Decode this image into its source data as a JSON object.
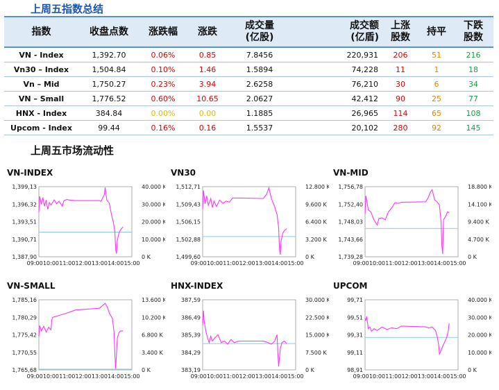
{
  "title1": "上周五指数总结",
  "title2": "上周五市场流动性",
  "table": {
    "headers": [
      "指数",
      "收盘点数",
      "涨跌幅",
      "涨跌",
      "成交量\n(亿股)",
      "成交额\n(亿盾)",
      "上涨\n股数",
      "持平",
      "下跌\n股数"
    ],
    "rows": [
      [
        "VN - Index",
        "1,392.70",
        "0.06%",
        "0.85",
        "7.8456",
        "220,931",
        "206",
        "51",
        "216"
      ],
      [
        "Vn30 – Index",
        "1,504.84",
        "0.10%",
        "1.46",
        "1.5894",
        "74,228",
        "11",
        "1",
        "18"
      ],
      [
        "Vn – Mid",
        "1,750.27",
        "0.23%",
        "3.94",
        "2.6258",
        "76,210",
        "30",
        "6",
        "34"
      ],
      [
        "VN – Small",
        "1,776.52",
        "0.60%",
        "10.65",
        "2.0627",
        "42,412",
        "90",
        "25",
        "77"
      ],
      [
        "HNX - Index",
        "384.84",
        "0.00%",
        "0.00",
        "1.1885",
        "26,965",
        "114",
        "65",
        "108"
      ],
      [
        "Upcom - Index",
        "99.44",
        "0.16%",
        "0.16",
        "1.5537",
        "20,102",
        "280",
        "92",
        "145"
      ]
    ],
    "colors": {
      "up": "#e00000",
      "flat": "#e6b800",
      "down": "#18a04a",
      "flat_count": "#e08400"
    }
  },
  "chart_data": [
    {
      "type": "line",
      "title": "VN-INDEX",
      "y_ticks": [
        "1,399,13",
        "1,396,32",
        "1,393,51",
        "1,390,71",
        "1,387,90"
      ],
      "y_range": [
        1387.9,
        1399.13
      ],
      "y2_ticks": [
        "40.000 K",
        "30.000 K",
        "20.000 K",
        "10.000 K",
        "0 K"
      ],
      "x_ticks": [
        "09:00",
        "10:00",
        "11:00",
        "12:00",
        "13:00",
        "14:00",
        "15:00"
      ],
      "reference": 1391.85,
      "price": [
        [
          9.25,
          1395.0
        ],
        [
          9.3,
          1397.6
        ],
        [
          9.4,
          1396.3
        ],
        [
          9.5,
          1397.4
        ],
        [
          9.6,
          1396.0
        ],
        [
          9.7,
          1397.0
        ],
        [
          9.8,
          1395.5
        ],
        [
          9.9,
          1396.6
        ],
        [
          10.0,
          1396.2
        ],
        [
          10.2,
          1397.0
        ],
        [
          10.35,
          1396.4
        ],
        [
          10.5,
          1396.8
        ],
        [
          10.7,
          1396.0
        ],
        [
          10.8,
          1396.9
        ],
        [
          11.0,
          1397.1
        ],
        [
          11.1,
          1397.0
        ],
        [
          11.5,
          1396.9
        ],
        [
          13.0,
          1396.9
        ],
        [
          13.1,
          1396.8
        ],
        [
          13.3,
          1397.9
        ],
        [
          13.35,
          1399.0
        ],
        [
          13.45,
          1397.0
        ],
        [
          13.6,
          1396.5
        ],
        [
          13.75,
          1394.5
        ],
        [
          13.85,
          1393.5
        ],
        [
          13.95,
          1392.0
        ],
        [
          14.0,
          1389.0
        ],
        [
          14.05,
          1388.4
        ],
        [
          14.1,
          1390.5
        ],
        [
          14.2,
          1391.7
        ],
        [
          14.3,
          1392.2
        ],
        [
          14.45,
          1392.7
        ]
      ]
    },
    {
      "type": "line",
      "title": "VN30",
      "y_ticks": [
        "1,512,71",
        "1,509,43",
        "1,506,15",
        "1,502,88",
        "1,499,60"
      ],
      "y_range": [
        1499.6,
        1512.71
      ],
      "y2_ticks": [
        "12.800 K",
        "9.600 K",
        "6.400 K",
        "3.200 K",
        "0 K"
      ],
      "x_ticks": [
        "09:00",
        "10:00",
        "11:00",
        "12:00",
        "13:00",
        "14:00",
        "15:00"
      ],
      "reference": 1503.38,
      "price": [
        [
          9.25,
          1508.5
        ],
        [
          9.3,
          1512.0
        ],
        [
          9.4,
          1509.5
        ],
        [
          9.5,
          1511.0
        ],
        [
          9.6,
          1509.2
        ],
        [
          9.75,
          1510.5
        ],
        [
          9.85,
          1508.8
        ],
        [
          9.95,
          1510.0
        ],
        [
          10.1,
          1509.0
        ],
        [
          10.3,
          1510.2
        ],
        [
          10.5,
          1509.6
        ],
        [
          10.7,
          1510.0
        ],
        [
          10.9,
          1509.8
        ],
        [
          11.1,
          1510.6
        ],
        [
          11.5,
          1510.6
        ],
        [
          13.0,
          1510.5
        ],
        [
          13.2,
          1511.3
        ],
        [
          13.35,
          1512.5
        ],
        [
          13.5,
          1510.5
        ],
        [
          13.7,
          1509.0
        ],
        [
          13.85,
          1507.5
        ],
        [
          13.95,
          1505.0
        ],
        [
          14.0,
          1501.0
        ],
        [
          14.05,
          1500.0
        ],
        [
          14.1,
          1502.5
        ],
        [
          14.2,
          1504.0
        ],
        [
          14.3,
          1504.5
        ],
        [
          14.45,
          1504.84
        ]
      ]
    },
    {
      "type": "line",
      "title": "VN-MID",
      "y_ticks": [
        "1,756,78",
        "1,752,40",
        "1,748,03",
        "1,743,66",
        "1,739,28"
      ],
      "y_range": [
        1739.28,
        1756.78
      ],
      "y2_ticks": [
        "18.800 K",
        "14.100 K",
        "9.400 K",
        "4.700 K",
        "0 K"
      ],
      "x_ticks": [
        "09:00",
        "10:00",
        "11:00",
        "12:00",
        "13:00",
        "14:00",
        "15:00"
      ],
      "reference": 1746.33,
      "price": [
        [
          9.25,
          1750.0
        ],
        [
          9.3,
          1754.5
        ],
        [
          9.45,
          1751.0
        ],
        [
          9.6,
          1750.5
        ],
        [
          9.8,
          1748.5
        ],
        [
          10.0,
          1747.2
        ],
        [
          10.1,
          1748.8
        ],
        [
          10.3,
          1749.0
        ],
        [
          10.5,
          1748.5
        ],
        [
          10.7,
          1750.5
        ],
        [
          10.9,
          1751.5
        ],
        [
          11.1,
          1752.8
        ],
        [
          11.3,
          1752.6
        ],
        [
          11.5,
          1752.9
        ],
        [
          13.0,
          1753.0
        ],
        [
          13.15,
          1754.0
        ],
        [
          13.3,
          1755.5
        ],
        [
          13.4,
          1756.0
        ],
        [
          13.55,
          1753.5
        ],
        [
          13.7,
          1753.0
        ],
        [
          13.85,
          1752.2
        ],
        [
          13.95,
          1748.0
        ],
        [
          14.0,
          1742.0
        ],
        [
          14.05,
          1740.0
        ],
        [
          14.1,
          1748.5
        ],
        [
          14.25,
          1749.5
        ],
        [
          14.35,
          1750.5
        ],
        [
          14.45,
          1750.27
        ]
      ]
    },
    {
      "type": "line",
      "title": "VN-SMALL",
      "y_ticks": [
        "1,785,16",
        "1,780,29",
        "1,775,42",
        "1,770,55",
        "1,765,68"
      ],
      "y_range": [
        1765.68,
        1785.16
      ],
      "y2_ticks": [
        "13.600 K",
        "10.200 K",
        "6.800 K",
        "3.400 K",
        "0 K"
      ],
      "x_ticks": [
        "09:00",
        "10:00",
        "11:00",
        "12:00",
        "13:00",
        "14:00",
        "15:00"
      ],
      "reference": 1765.87,
      "price": [
        [
          9.25,
          1775.0
        ],
        [
          9.3,
          1778.0
        ],
        [
          9.4,
          1776.5
        ],
        [
          9.55,
          1777.8
        ],
        [
          9.7,
          1776.2
        ],
        [
          9.85,
          1777.5
        ],
        [
          10.0,
          1776.8
        ],
        [
          10.05,
          1779.5
        ],
        [
          10.1,
          1780.3
        ],
        [
          10.5,
          1780.8
        ],
        [
          11.0,
          1781.5
        ],
        [
          11.5,
          1782.3
        ],
        [
          13.0,
          1782.8
        ],
        [
          13.2,
          1783.6
        ],
        [
          13.35,
          1784.2
        ],
        [
          13.5,
          1783.0
        ],
        [
          13.6,
          1781.5
        ],
        [
          13.8,
          1780.0
        ],
        [
          13.9,
          1776.0
        ],
        [
          13.95,
          1770.0
        ],
        [
          14.0,
          1766.0
        ],
        [
          14.1,
          1774.5
        ],
        [
          14.2,
          1776.0
        ],
        [
          14.3,
          1776.5
        ],
        [
          14.45,
          1776.52
        ]
      ]
    },
    {
      "type": "line",
      "title": "HNX-INDEX",
      "y_ticks": [
        "387,59",
        "386,49",
        "385,39",
        "384,29",
        "383,19"
      ],
      "y_range": [
        383.19,
        387.59
      ],
      "y2_ticks": [
        "30.000 K",
        "22.500 K",
        "15.000 K",
        "7.500 K",
        "0 K"
      ],
      "x_ticks": [
        "09:00",
        "10:00",
        "11:00",
        "12:00",
        "13:00",
        "14:00",
        "15:00"
      ],
      "reference": 384.84,
      "price": [
        [
          9.25,
          386.0
        ],
        [
          9.3,
          386.9
        ],
        [
          9.35,
          386.2
        ],
        [
          9.45,
          385.6
        ],
        [
          9.55,
          385.2
        ],
        [
          9.65,
          384.9
        ],
        [
          9.75,
          385.3
        ],
        [
          9.85,
          385.0
        ],
        [
          10.0,
          385.2
        ],
        [
          10.2,
          385.4
        ],
        [
          10.4,
          384.9
        ],
        [
          10.6,
          385.0
        ],
        [
          10.8,
          384.8
        ],
        [
          11.0,
          385.1
        ],
        [
          11.2,
          384.9
        ],
        [
          11.5,
          385.0
        ],
        [
          13.0,
          385.0
        ],
        [
          13.3,
          384.9
        ],
        [
          13.5,
          384.8
        ],
        [
          13.7,
          385.0
        ],
        [
          13.85,
          385.4
        ],
        [
          13.9,
          384.2
        ],
        [
          13.95,
          383.4
        ],
        [
          14.05,
          384.5
        ],
        [
          14.15,
          384.9
        ],
        [
          14.3,
          385.0
        ],
        [
          14.45,
          384.84
        ]
      ]
    },
    {
      "type": "line",
      "title": "UPCOM",
      "y_ticks": [
        "99,71",
        "99,51",
        "99,31",
        "99,11",
        "98,91"
      ],
      "y_range": [
        98.91,
        99.71
      ],
      "y2_ticks": [
        "40.000 K",
        "30.000 K",
        "20.000 K",
        "10.000 K",
        "0 K"
      ],
      "x_ticks": [
        "09:00",
        "10:00",
        "11:00",
        "12:00",
        "13:00",
        "14:00",
        "15:00"
      ],
      "reference": 99.28,
      "price": [
        [
          9.25,
          99.5
        ],
        [
          9.3,
          99.47
        ],
        [
          9.35,
          99.52
        ],
        [
          9.45,
          99.38
        ],
        [
          9.55,
          99.4
        ],
        [
          9.65,
          99.35
        ],
        [
          9.8,
          99.38
        ],
        [
          10.0,
          99.36
        ],
        [
          10.3,
          99.4
        ],
        [
          10.6,
          99.37
        ],
        [
          10.9,
          99.39
        ],
        [
          11.2,
          99.38
        ],
        [
          11.5,
          99.41
        ],
        [
          13.0,
          99.4
        ],
        [
          13.2,
          99.39
        ],
        [
          13.4,
          99.4
        ],
        [
          13.5,
          99.38
        ],
        [
          13.6,
          99.36
        ],
        [
          13.7,
          99.3
        ],
        [
          13.8,
          99.2
        ],
        [
          13.85,
          99.09
        ],
        [
          13.95,
          99.13
        ],
        [
          14.05,
          99.18
        ],
        [
          14.15,
          99.22
        ],
        [
          14.3,
          99.28
        ],
        [
          14.4,
          99.36
        ],
        [
          14.45,
          99.44
        ]
      ]
    }
  ],
  "series_color": "#ff33ff",
  "reference_color": "#8cc8e8"
}
